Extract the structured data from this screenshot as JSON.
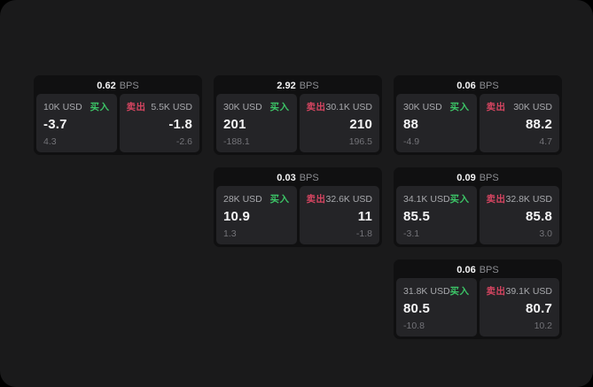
{
  "page": {
    "background": "#000000",
    "surface_color": "#1a1a1b"
  },
  "labels": {
    "bps_unit": "BPS",
    "buy": "买入",
    "sell": "卖出"
  },
  "colors": {
    "buy_green": "#3cc567",
    "sell_red": "#d64561",
    "card_bg": "#101011",
    "panel_bg": "#242427",
    "value_white": "#f4f4f5",
    "size_label_gray": "#a8a9ad",
    "sub_value_gray": "#737378",
    "bps_unit_gray": "#8b8c91"
  },
  "cards": [
    {
      "row": 1,
      "col": 1,
      "bps": "0.62",
      "buy": {
        "size": "10K USD",
        "value": "-3.7",
        "sub": "4.3"
      },
      "sell": {
        "size": "5.5K USD",
        "value": "-1.8",
        "sub": "-2.6"
      }
    },
    {
      "row": 1,
      "col": 2,
      "bps": "2.92",
      "buy": {
        "size": "30K USD",
        "value": "201",
        "sub": "-188.1"
      },
      "sell": {
        "size": "30.1K USD",
        "value": "210",
        "sub": "196.5"
      }
    },
    {
      "row": 1,
      "col": 3,
      "bps": "0.06",
      "buy": {
        "size": "30K USD",
        "value": "88",
        "sub": "-4.9"
      },
      "sell": {
        "size": "30K USD",
        "value": "88.2",
        "sub": "4.7"
      }
    },
    {
      "row": 2,
      "col": 2,
      "bps": "0.03",
      "buy": {
        "size": "28K USD",
        "value": "10.9",
        "sub": "1.3"
      },
      "sell": {
        "size": "32.6K USD",
        "value": "11",
        "sub": "-1.8"
      }
    },
    {
      "row": 2,
      "col": 3,
      "bps": "0.09",
      "buy": {
        "size": "34.1K USD",
        "value": "85.5",
        "sub": "-3.1"
      },
      "sell": {
        "size": "32.8K USD",
        "value": "85.8",
        "sub": "3.0"
      }
    },
    {
      "row": 3,
      "col": 3,
      "bps": "0.06",
      "buy": {
        "size": "31.8K USD",
        "value": "80.5",
        "sub": "-10.8"
      },
      "sell": {
        "size": "39.1K USD",
        "value": "80.7",
        "sub": "10.2"
      }
    }
  ]
}
